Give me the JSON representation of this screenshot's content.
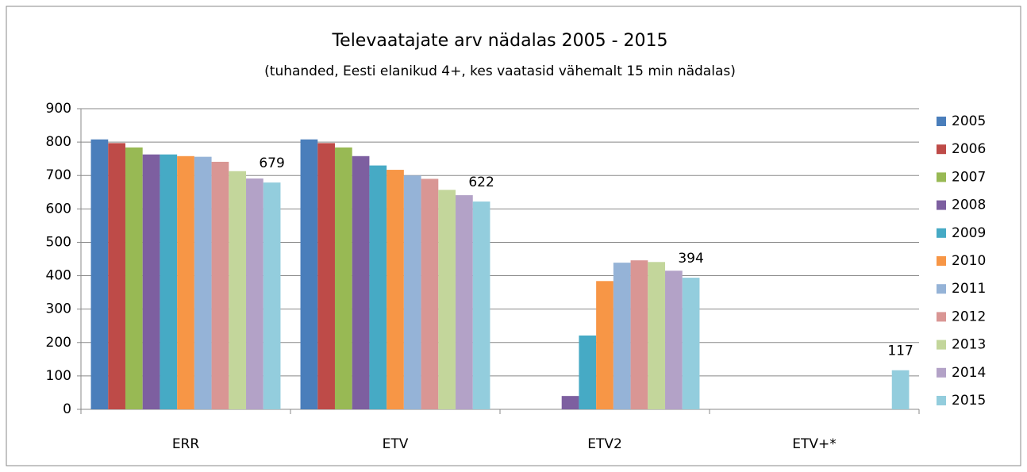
{
  "chart_data": {
    "type": "bar",
    "title": "Televaatajate arv nädalas 2005 - 2015",
    "subtitle": "(tuhanded, Eesti elanikud 4+, kes vaatasid vähemalt 15 min nädalas)",
    "categories": [
      "ERR",
      "ETV",
      "ETV2",
      "ETV+*"
    ],
    "series": [
      {
        "name": "2005",
        "color": "#4a7ebb",
        "values": [
          808,
          808,
          null,
          null
        ]
      },
      {
        "name": "2006",
        "color": "#be4b48",
        "values": [
          797,
          797,
          null,
          null
        ]
      },
      {
        "name": "2007",
        "color": "#98b954",
        "values": [
          784,
          784,
          null,
          null
        ]
      },
      {
        "name": "2008",
        "color": "#7d5fa0",
        "values": [
          763,
          758,
          40,
          null
        ]
      },
      {
        "name": "2009",
        "color": "#46aac5",
        "values": [
          763,
          730,
          221,
          null
        ]
      },
      {
        "name": "2010",
        "color": "#f79646",
        "values": [
          758,
          717,
          384,
          null
        ]
      },
      {
        "name": "2011",
        "color": "#95b3d7",
        "values": [
          756,
          700,
          439,
          null
        ]
      },
      {
        "name": "2012",
        "color": "#d99694",
        "values": [
          741,
          690,
          446,
          null
        ]
      },
      {
        "name": "2013",
        "color": "#c3d69b",
        "values": [
          713,
          657,
          441,
          null
        ]
      },
      {
        "name": "2014",
        "color": "#b3a2c7",
        "values": [
          691,
          641,
          415,
          null
        ]
      },
      {
        "name": "2015",
        "color": "#93cddd",
        "values": [
          679,
          622,
          394,
          117
        ],
        "value_labels": [
          "679",
          "622",
          "394",
          "117"
        ]
      }
    ],
    "ylim": [
      0,
      900
    ],
    "yticks": [
      0,
      100,
      200,
      300,
      400,
      500,
      600,
      700,
      800,
      900
    ],
    "grid": true,
    "legend": "right"
  }
}
